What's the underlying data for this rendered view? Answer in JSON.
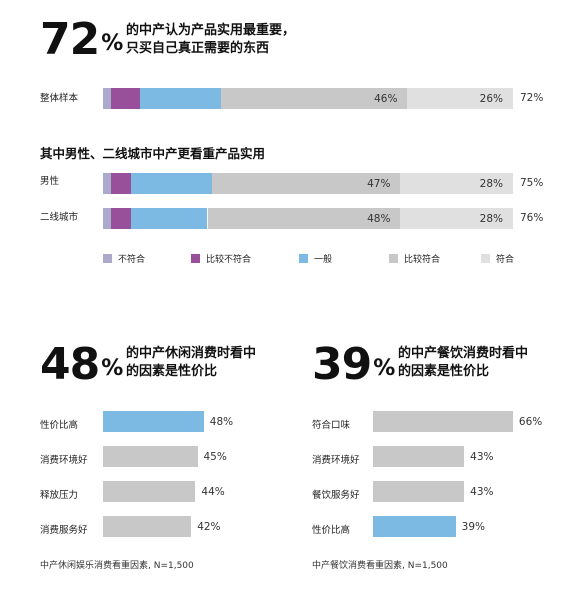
{
  "colors": {
    "不符合": "#aba9cc",
    "比较不符合": "#98509b",
    "一般": "#7cb9e3",
    "比较符合": "#c8c8c8",
    "符合": "#e0e0e0",
    "highlight": "#7cb9e3",
    "neutral": "#c8c8c8"
  },
  "top": {
    "big_number": "72",
    "big_pct": "%",
    "headline_line1": "的中产认为产品实用最重要，",
    "headline_line2": "只买自己真正需要的东西"
  },
  "subheading": "其中男性、二线城市中产更看重产品实用",
  "chart_data": [
    {
      "type": "bar",
      "orientation": "horizontal",
      "stacked": true,
      "categories": [
        "整体样本",
        "男性",
        "二线城市"
      ],
      "series": [
        {
          "name": "不符合",
          "values": [
            2,
            2,
            2
          ]
        },
        {
          "name": "比较不符合",
          "values": [
            7,
            5,
            5
          ]
        },
        {
          "name": "一般",
          "values": [
            20,
            20,
            19
          ]
        },
        {
          "name": "比较符合",
          "values": [
            46,
            47,
            48
          ]
        },
        {
          "name": "符合",
          "values": [
            26,
            28,
            28
          ]
        }
      ],
      "data_labels": [
        {
          "比较符合": "46%",
          "符合": "26%",
          "total": "72%"
        },
        {
          "比较符合": "47%",
          "符合": "28%",
          "total": "75%"
        },
        {
          "比较符合": "48%",
          "符合": "28%",
          "total": "76%"
        }
      ],
      "legend": [
        "不符合",
        "比较不符合",
        "一般",
        "比较符合",
        "符合"
      ],
      "legend_position": "bottom"
    },
    {
      "type": "bar",
      "orientation": "horizontal",
      "big_number": "48",
      "big_pct": "%",
      "headline_line1": "的中产休闲消费时看中",
      "headline_line2": "的因素是性价比",
      "categories": [
        "性价比高",
        "消费环境好",
        "释放压力",
        "消费服务好"
      ],
      "values": [
        48,
        45,
        44,
        42
      ],
      "value_labels": [
        "48%",
        "45%",
        "44%",
        "42%"
      ],
      "highlight_index": 0,
      "footnote": "中产休闲娱乐消费看重因素, N=1,500"
    },
    {
      "type": "bar",
      "orientation": "horizontal",
      "big_number": "39",
      "big_pct": "%",
      "headline_line1": "的中产餐饮消费时看中",
      "headline_line2": "的因素是性价比",
      "categories": [
        "符合口味",
        "消费环境好",
        "餐饮服务好",
        "性价比高"
      ],
      "values": [
        66,
        43,
        43,
        39
      ],
      "value_labels": [
        "66%",
        "43%",
        "43%",
        "39%"
      ],
      "highlight_index": 3,
      "footnote": "中产餐饮消费看重因素, N=1,500"
    }
  ]
}
